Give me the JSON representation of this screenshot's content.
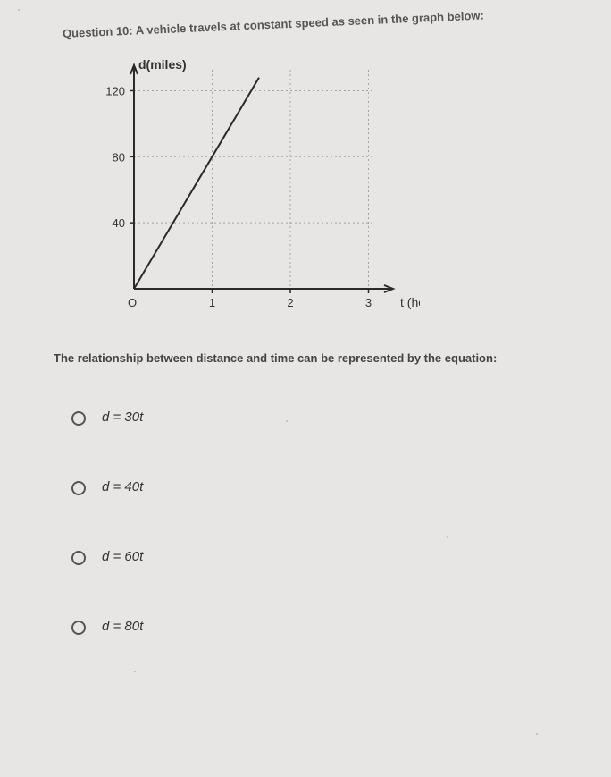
{
  "question": {
    "prompt": "Question 10: A vehicle travels at constant speed as seen in the graph below:",
    "followup": "The relationship between distance and time can be represented by the equation:"
  },
  "graph": {
    "type": "line",
    "y_axis_label": "d(miles)",
    "x_axis_label": "t (hours)",
    "y_ticks": [
      40,
      80,
      120
    ],
    "x_ticks": [
      1,
      2,
      3
    ],
    "origin_label": "O",
    "xlim": [
      0,
      3.2
    ],
    "ylim": [
      0,
      130
    ],
    "line_points": [
      [
        0,
        0
      ],
      [
        1.6,
        128
      ]
    ],
    "line_color": "#2a2a2a",
    "line_width": 2,
    "axis_color": "#2a2a2a",
    "axis_width": 2,
    "grid_color": "#888888",
    "grid_dash": "2 3",
    "background_color": "#e8e6e4",
    "label_fontsize": 14,
    "tick_fontsize": 13,
    "title_fontsize": 14
  },
  "options": [
    {
      "label": "d = 30t"
    },
    {
      "label": "d = 40t"
    },
    {
      "label": "d = 60t"
    },
    {
      "label": "d = 80t"
    }
  ]
}
